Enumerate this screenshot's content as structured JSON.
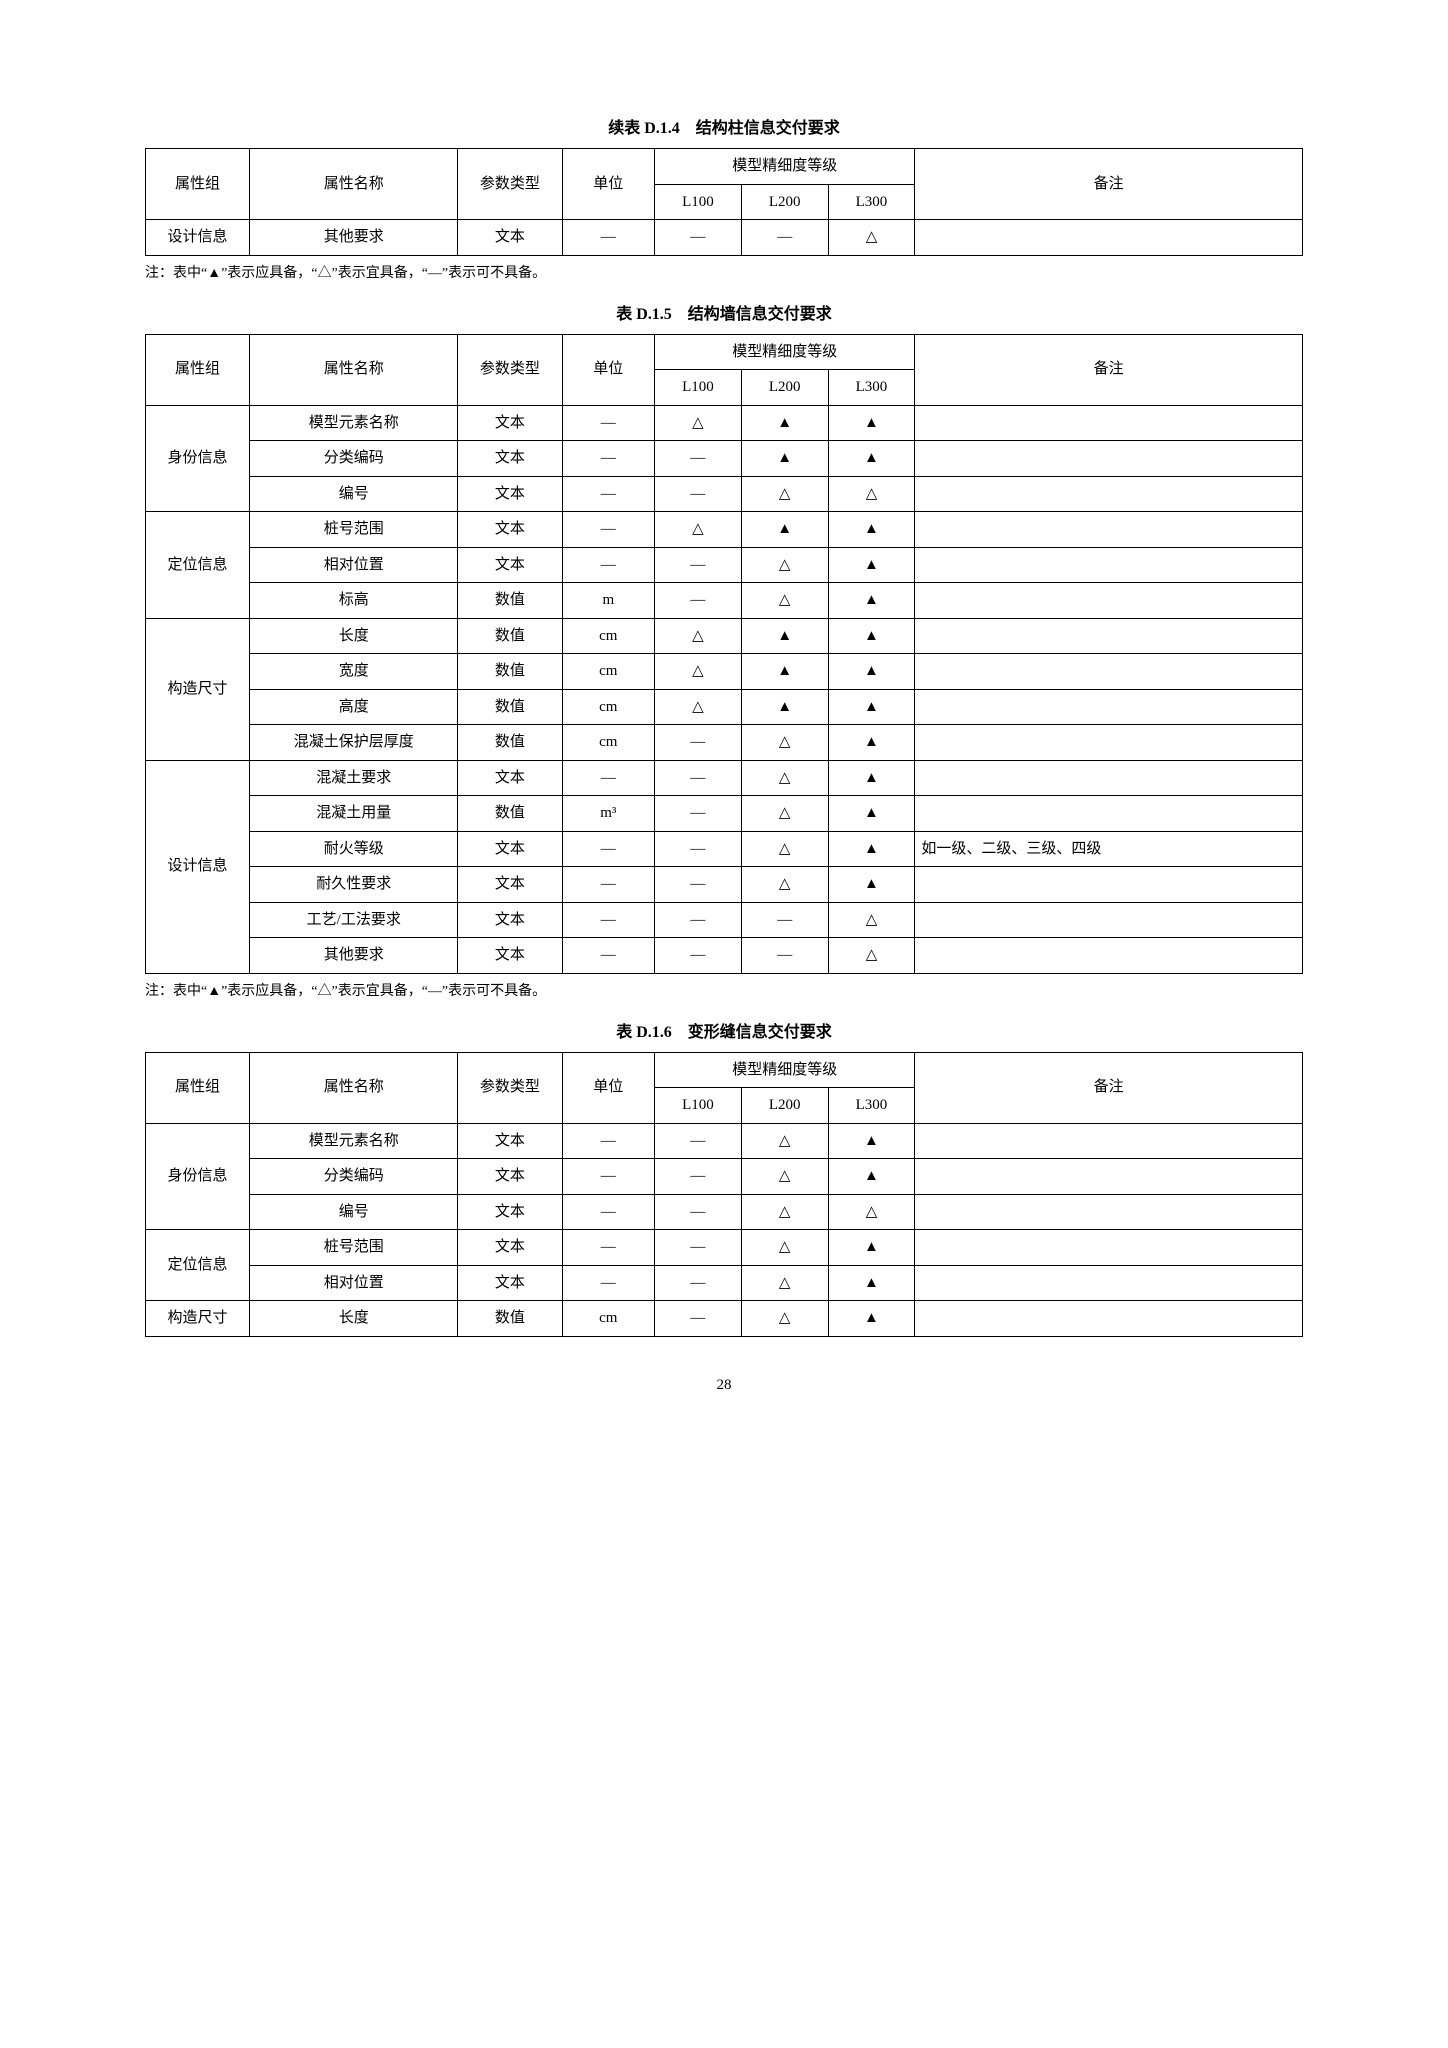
{
  "symbols": {
    "must": "▲",
    "should": "△",
    "none": "—"
  },
  "note_text": "注：表中“▲”表示应具备，“△”表示宜具备，“—”表示可不具备。",
  "page_number": "28",
  "header_labels": {
    "group": "属性组",
    "name": "属性名称",
    "ptype": "参数类型",
    "unit": "单位",
    "level_head": "模型精细度等级",
    "L100": "L100",
    "L200": "L200",
    "L300": "L300",
    "remark": "备注"
  },
  "table1": {
    "caption": "续表 D.1.4　结构柱信息交付要求",
    "rows": [
      {
        "group": "设计信息",
        "name": "其他要求",
        "ptype": "文本",
        "unit": "—",
        "L100": "—",
        "L200": "—",
        "L300": "△",
        "remark": ""
      }
    ]
  },
  "table2": {
    "caption": "表 D.1.5　结构墙信息交付要求",
    "groups": [
      {
        "group": "身份信息",
        "rows": [
          {
            "name": "模型元素名称",
            "ptype": "文本",
            "unit": "—",
            "L100": "△",
            "L200": "▲",
            "L300": "▲",
            "remark": ""
          },
          {
            "name": "分类编码",
            "ptype": "文本",
            "unit": "—",
            "L100": "—",
            "L200": "▲",
            "L300": "▲",
            "remark": ""
          },
          {
            "name": "编号",
            "ptype": "文本",
            "unit": "—",
            "L100": "—",
            "L200": "△",
            "L300": "△",
            "remark": ""
          }
        ]
      },
      {
        "group": "定位信息",
        "rows": [
          {
            "name": "桩号范围",
            "ptype": "文本",
            "unit": "—",
            "L100": "△",
            "L200": "▲",
            "L300": "▲",
            "remark": ""
          },
          {
            "name": "相对位置",
            "ptype": "文本",
            "unit": "—",
            "L100": "—",
            "L200": "△",
            "L300": "▲",
            "remark": ""
          },
          {
            "name": "标高",
            "ptype": "数值",
            "unit": "m",
            "L100": "—",
            "L200": "△",
            "L300": "▲",
            "remark": ""
          }
        ]
      },
      {
        "group": "构造尺寸",
        "rows": [
          {
            "name": "长度",
            "ptype": "数值",
            "unit": "cm",
            "L100": "△",
            "L200": "▲",
            "L300": "▲",
            "remark": ""
          },
          {
            "name": "宽度",
            "ptype": "数值",
            "unit": "cm",
            "L100": "△",
            "L200": "▲",
            "L300": "▲",
            "remark": ""
          },
          {
            "name": "高度",
            "ptype": "数值",
            "unit": "cm",
            "L100": "△",
            "L200": "▲",
            "L300": "▲",
            "remark": ""
          },
          {
            "name": "混凝土保护层厚度",
            "ptype": "数值",
            "unit": "cm",
            "L100": "—",
            "L200": "△",
            "L300": "▲",
            "remark": ""
          }
        ]
      },
      {
        "group": "设计信息",
        "rows": [
          {
            "name": "混凝土要求",
            "ptype": "文本",
            "unit": "—",
            "L100": "—",
            "L200": "△",
            "L300": "▲",
            "remark": ""
          },
          {
            "name": "混凝土用量",
            "ptype": "数值",
            "unit": "m³",
            "L100": "—",
            "L200": "△",
            "L300": "▲",
            "remark": ""
          },
          {
            "name": "耐火等级",
            "ptype": "文本",
            "unit": "—",
            "L100": "—",
            "L200": "△",
            "L300": "▲",
            "remark": "如一级、二级、三级、四级"
          },
          {
            "name": "耐久性要求",
            "ptype": "文本",
            "unit": "—",
            "L100": "—",
            "L200": "△",
            "L300": "▲",
            "remark": ""
          },
          {
            "name": "工艺/工法要求",
            "ptype": "文本",
            "unit": "—",
            "L100": "—",
            "L200": "—",
            "L300": "△",
            "remark": ""
          },
          {
            "name": "其他要求",
            "ptype": "文本",
            "unit": "—",
            "L100": "—",
            "L200": "—",
            "L300": "△",
            "remark": ""
          }
        ]
      }
    ]
  },
  "table3": {
    "caption": "表 D.1.6　变形缝信息交付要求",
    "groups": [
      {
        "group": "身份信息",
        "rows": [
          {
            "name": "模型元素名称",
            "ptype": "文本",
            "unit": "—",
            "L100": "—",
            "L200": "△",
            "L300": "▲",
            "remark": ""
          },
          {
            "name": "分类编码",
            "ptype": "文本",
            "unit": "—",
            "L100": "—",
            "L200": "△",
            "L300": "▲",
            "remark": ""
          },
          {
            "name": "编号",
            "ptype": "文本",
            "unit": "—",
            "L100": "—",
            "L200": "△",
            "L300": "△",
            "remark": ""
          }
        ]
      },
      {
        "group": "定位信息",
        "rows": [
          {
            "name": "桩号范围",
            "ptype": "文本",
            "unit": "—",
            "L100": "—",
            "L200": "△",
            "L300": "▲",
            "remark": ""
          },
          {
            "name": "相对位置",
            "ptype": "文本",
            "unit": "—",
            "L100": "—",
            "L200": "△",
            "L300": "▲",
            "remark": ""
          }
        ]
      },
      {
        "group": "构造尺寸",
        "rows": [
          {
            "name": "长度",
            "ptype": "数值",
            "unit": "cm",
            "L100": "—",
            "L200": "△",
            "L300": "▲",
            "remark": ""
          }
        ]
      }
    ]
  }
}
